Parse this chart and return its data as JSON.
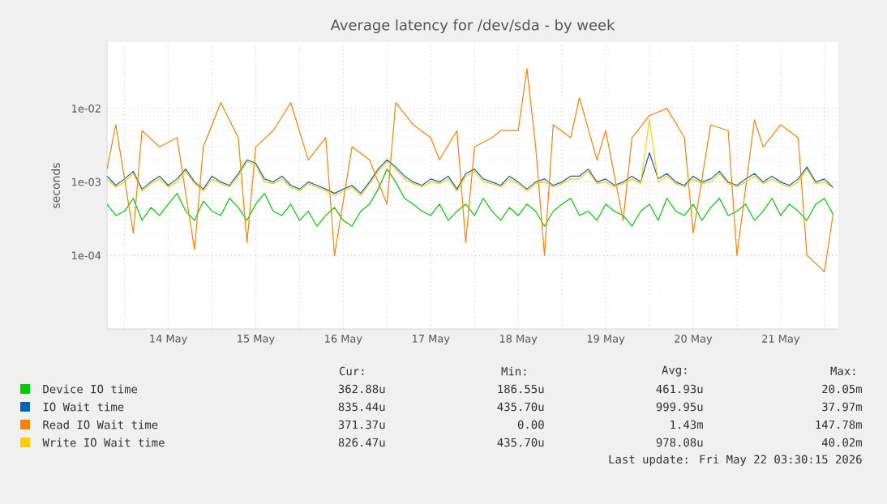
{
  "chart_data": {
    "type": "line",
    "title": "Average latency for /dev/sda - by week",
    "ylabel": "seconds",
    "log": "y",
    "grid": true,
    "legend": "bottom",
    "marker": "none",
    "line_style": "solid",
    "xlim": [
      "2026-05-13T19:12",
      "2026-05-22T03:50"
    ],
    "ylim": [
      1e-05,
      0.08
    ],
    "xticks": [
      {
        "value": "2026-05-14T00:00",
        "label": null
      },
      {
        "value": "2026-05-14T12:00",
        "label": "14 May"
      },
      {
        "value": "2026-05-15T00:00",
        "label": null
      },
      {
        "value": "2026-05-15T12:00",
        "label": "15 May"
      },
      {
        "value": "2026-05-16T00:00",
        "label": null
      },
      {
        "value": "2026-05-16T12:00",
        "label": "16 May"
      },
      {
        "value": "2026-05-17T00:00",
        "label": null
      },
      {
        "value": "2026-05-17T12:00",
        "label": "17 May"
      },
      {
        "value": "2026-05-18T00:00",
        "label": null
      },
      {
        "value": "2026-05-18T12:00",
        "label": "18 May"
      },
      {
        "value": "2026-05-19T00:00",
        "label": null
      },
      {
        "value": "2026-05-19T12:00",
        "label": "19 May"
      },
      {
        "value": "2026-05-20T00:00",
        "label": null
      },
      {
        "value": "2026-05-20T12:00",
        "label": "20 May"
      },
      {
        "value": "2026-05-21T00:00",
        "label": null
      },
      {
        "value": "2026-05-21T12:00",
        "label": "21 May"
      },
      {
        "value": "2026-05-22T00:00",
        "label": null
      }
    ],
    "yticks": [
      {
        "value": 0.0001,
        "label": "1e-04"
      },
      {
        "value": 0.001,
        "label": "1e-03"
      },
      {
        "value": 0.01,
        "label": "1e-02"
      }
    ],
    "x": [
      "2026-05-13T19:12",
      "2026-05-13T21:36",
      "2026-05-14T00:00",
      "2026-05-14T02:24",
      "2026-05-14T04:48",
      "2026-05-14T07:12",
      "2026-05-14T09:36",
      "2026-05-14T12:00",
      "2026-05-14T14:24",
      "2026-05-14T16:48",
      "2026-05-14T19:12",
      "2026-05-14T21:36",
      "2026-05-15T00:00",
      "2026-05-15T02:24",
      "2026-05-15T04:48",
      "2026-05-15T07:12",
      "2026-05-15T09:36",
      "2026-05-15T12:00",
      "2026-05-15T14:24",
      "2026-05-15T16:48",
      "2026-05-15T19:12",
      "2026-05-15T21:36",
      "2026-05-16T00:00",
      "2026-05-16T02:24",
      "2026-05-16T04:48",
      "2026-05-16T07:12",
      "2026-05-16T09:36",
      "2026-05-16T12:00",
      "2026-05-16T14:24",
      "2026-05-16T16:48",
      "2026-05-16T19:12",
      "2026-05-16T21:36",
      "2026-05-17T00:00",
      "2026-05-17T02:24",
      "2026-05-17T04:48",
      "2026-05-17T07:12",
      "2026-05-17T09:36",
      "2026-05-17T12:00",
      "2026-05-17T14:24",
      "2026-05-17T16:48",
      "2026-05-17T19:12",
      "2026-05-17T21:36",
      "2026-05-18T00:00",
      "2026-05-18T02:24",
      "2026-05-18T04:48",
      "2026-05-18T07:12",
      "2026-05-18T09:36",
      "2026-05-18T12:00",
      "2026-05-18T14:24",
      "2026-05-18T16:48",
      "2026-05-18T19:12",
      "2026-05-18T21:36",
      "2026-05-19T00:00",
      "2026-05-19T02:24",
      "2026-05-19T04:48",
      "2026-05-19T07:12",
      "2026-05-19T09:36",
      "2026-05-19T12:00",
      "2026-05-19T14:24",
      "2026-05-19T16:48",
      "2026-05-19T19:12",
      "2026-05-19T21:36",
      "2026-05-20T00:00",
      "2026-05-20T02:24",
      "2026-05-20T04:48",
      "2026-05-20T07:12",
      "2026-05-20T09:36",
      "2026-05-20T12:00",
      "2026-05-20T14:24",
      "2026-05-20T16:48",
      "2026-05-20T19:12",
      "2026-05-20T21:36",
      "2026-05-21T00:00",
      "2026-05-21T02:24",
      "2026-05-21T04:48",
      "2026-05-21T07:12",
      "2026-05-21T09:36",
      "2026-05-21T12:00",
      "2026-05-21T14:24",
      "2026-05-21T16:48",
      "2026-05-21T19:12",
      "2026-05-21T21:36",
      "2026-05-22T00:00",
      "2026-05-22T02:24"
    ],
    "series": [
      {
        "name": "Device IO time",
        "color": "#00cc00",
        "values": [
          0.0005,
          0.00035,
          0.0004,
          0.0006,
          0.0003,
          0.00045,
          0.00035,
          0.0005,
          0.0007,
          0.0004,
          0.0003,
          0.00055,
          0.0004,
          0.00035,
          0.0006,
          0.00045,
          0.0003,
          0.0005,
          0.0007,
          0.0004,
          0.00035,
          0.0005,
          0.0003,
          0.0004,
          0.00025,
          0.00035,
          0.00045,
          0.0003,
          0.00025,
          0.0004,
          0.0005,
          0.0008,
          0.0015,
          0.001,
          0.0006,
          0.0005,
          0.0004,
          0.00035,
          0.0005,
          0.0003,
          0.0004,
          0.0005,
          0.00035,
          0.0006,
          0.0004,
          0.0003,
          0.00045,
          0.00035,
          0.0005,
          0.0004,
          0.00025,
          0.0004,
          0.0005,
          0.0006,
          0.00035,
          0.0004,
          0.0003,
          0.0005,
          0.0004,
          0.00035,
          0.00025,
          0.0004,
          0.0005,
          0.0003,
          0.0006,
          0.0004,
          0.00035,
          0.0005,
          0.0003,
          0.00045,
          0.0006,
          0.00035,
          0.0004,
          0.0005,
          0.0003,
          0.0004,
          0.0006,
          0.00035,
          0.0005,
          0.0004,
          0.0003,
          0.0005,
          0.0006,
          0.00036
        ]
      },
      {
        "name": "IO Wait time",
        "color": "#0066b3",
        "values": [
          0.0012,
          0.0009,
          0.0011,
          0.0014,
          0.0008,
          0.001,
          0.0012,
          0.0009,
          0.0011,
          0.0015,
          0.001,
          0.0008,
          0.0012,
          0.001,
          0.0009,
          0.0013,
          0.002,
          0.0018,
          0.0011,
          0.001,
          0.0012,
          0.0009,
          0.0008,
          0.001,
          0.0009,
          0.0008,
          0.0007,
          0.0008,
          0.0009,
          0.0007,
          0.001,
          0.0015,
          0.002,
          0.0016,
          0.0012,
          0.001,
          0.0009,
          0.0011,
          0.001,
          0.0012,
          0.0008,
          0.0013,
          0.0015,
          0.0011,
          0.001,
          0.0009,
          0.0012,
          0.001,
          0.0008,
          0.001,
          0.0011,
          0.0009,
          0.001,
          0.0012,
          0.0012,
          0.0015,
          0.001,
          0.0011,
          0.0009,
          0.001,
          0.0012,
          0.001,
          0.0025,
          0.0011,
          0.0013,
          0.001,
          0.0009,
          0.0012,
          0.001,
          0.0011,
          0.0014,
          0.001,
          0.0009,
          0.0011,
          0.0013,
          0.001,
          0.0012,
          0.001,
          0.0009,
          0.0011,
          0.0016,
          0.001,
          0.0011,
          0.00084
        ]
      },
      {
        "name": "Read IO Wait time",
        "color": "#ff8000",
        "values": [
          0.0015,
          0.006,
          null,
          0.0002,
          0.005,
          null,
          0.003,
          null,
          0.004,
          null,
          0.00012,
          0.003,
          null,
          0.012,
          null,
          0.004,
          0.00015,
          0.003,
          null,
          0.005,
          null,
          0.012,
          null,
          0.002,
          null,
          0.004,
          0.0001,
          null,
          0.003,
          null,
          0.002,
          null,
          0.0005,
          0.012,
          null,
          0.006,
          null,
          0.004,
          0.002,
          null,
          0.005,
          0.00015,
          0.003,
          null,
          0.004,
          0.005,
          null,
          0.005,
          0.035,
          0.003,
          0.0001,
          0.006,
          null,
          0.004,
          0.014,
          null,
          0.002,
          0.005,
          null,
          0.0003,
          0.004,
          null,
          0.008,
          null,
          0.01,
          null,
          0.004,
          0.0002,
          null,
          0.006,
          null,
          0.005,
          0.0001,
          null,
          0.007,
          0.003,
          null,
          0.006,
          null,
          0.004,
          0.0001,
          null,
          6e-05,
          0.00037
        ]
      },
      {
        "name": "Write IO Wait time",
        "color": "#ffcc00",
        "values": [
          0.0011,
          0.00085,
          0.001,
          0.0013,
          0.00075,
          0.00095,
          0.0011,
          0.00085,
          0.001,
          0.0014,
          0.00095,
          0.00075,
          0.0011,
          0.00095,
          0.00085,
          0.0012,
          0.0019,
          0.0017,
          0.001,
          0.00095,
          0.0011,
          0.00085,
          0.00075,
          0.00095,
          0.00085,
          0.00075,
          0.00065,
          0.00075,
          0.00085,
          0.00065,
          0.00095,
          0.0014,
          0.0019,
          0.0015,
          0.0011,
          0.00095,
          0.00085,
          0.001,
          0.00095,
          0.0011,
          0.00075,
          0.0012,
          0.0014,
          0.001,
          0.00095,
          0.00085,
          0.0011,
          0.00095,
          0.00075,
          0.00095,
          0.001,
          0.00085,
          0.00095,
          0.0011,
          0.0011,
          0.0014,
          0.00095,
          0.001,
          0.00085,
          0.00095,
          0.0011,
          0.00095,
          0.007,
          0.001,
          0.0012,
          0.00095,
          0.00085,
          0.0011,
          0.00095,
          0.001,
          0.0013,
          0.00095,
          0.00085,
          0.001,
          0.0012,
          0.00095,
          0.0011,
          0.00095,
          0.00085,
          0.001,
          0.0015,
          0.00095,
          0.001,
          0.00083
        ]
      }
    ],
    "annotations": [
      "Cur:",
      "Min:",
      "Avg:",
      "Max:",
      "362.88u",
      "186.55u",
      "461.93u",
      "20.05m",
      "835.44u",
      "435.70u",
      "999.95u",
      "37.97m",
      "371.37u",
      "0.00",
      "1.43m",
      "147.78m",
      "826.47u",
      "435.70u",
      "978.08u",
      "40.02m",
      "Last update: Fri May 22 03:30:15 2026"
    ]
  }
}
